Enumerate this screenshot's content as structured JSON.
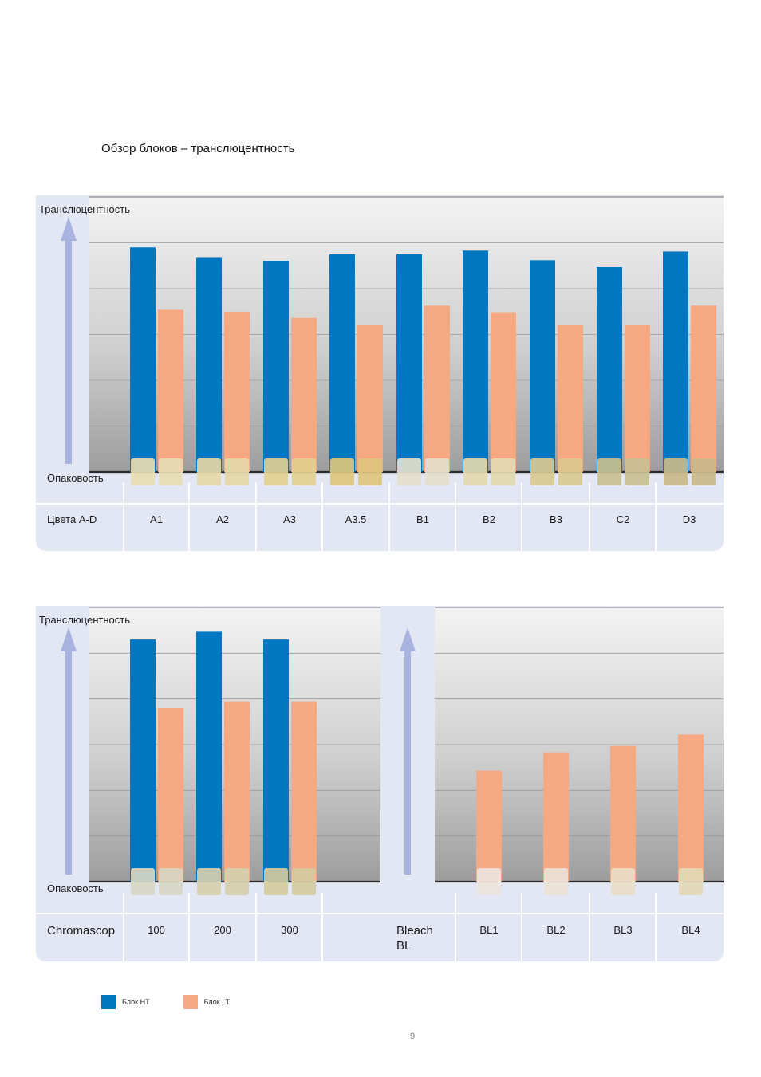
{
  "title": "Обзор блоков – транслюцентность",
  "page_number": "9",
  "legend": [
    {
      "label": "Блок HT",
      "color": "#0077c0"
    },
    {
      "label": "Блок LT",
      "color": "#f6a882"
    }
  ],
  "axis": {
    "top_label": "Транслюцентность",
    "bottom_label": "Опаковость"
  },
  "colors": {
    "ht": "#0077c0",
    "lt": "#f6a882",
    "panel": "#e3e7f3",
    "arrow": "#a8b4df"
  },
  "chart_data": [
    {
      "type": "bar",
      "row_label": "Цвета A-D",
      "categories": [
        "A1",
        "A2",
        "A3",
        "A3.5",
        "B1",
        "B2",
        "B3",
        "C2",
        "D3"
      ],
      "series": [
        {
          "name": "Блок HT",
          "values": [
            4.9,
            4.67,
            4.6,
            4.75,
            4.75,
            4.83,
            4.62,
            4.47,
            4.81
          ]
        },
        {
          "name": "Блок LT",
          "values": [
            3.54,
            3.48,
            3.36,
            3.2,
            3.63,
            3.47,
            3.2,
            3.2,
            3.63
          ]
        }
      ],
      "swatches": [
        "#e6dcb4",
        "#e5d7a6",
        "#e2cf90",
        "#ddc57c",
        "#e3dfca",
        "#e2d9b0",
        "#dac98e",
        "#c8c092",
        "#c9b98a"
      ],
      "ylim": [
        0,
        6
      ],
      "xlabel": "",
      "ylabel": ""
    },
    {
      "type": "bar",
      "row_label": "Chromascop",
      "categories": [
        "100",
        "200",
        "300"
      ],
      "series": [
        {
          "name": "Блок HT",
          "values": [
            5.3,
            5.47,
            5.3
          ]
        },
        {
          "name": "Блок LT",
          "values": [
            3.8,
            3.95,
            3.95
          ]
        }
      ],
      "swatches": [
        "#d6d7c3",
        "#d4cfac",
        "#d2cb9e"
      ],
      "ylim": [
        0,
        6
      ],
      "xlabel": "",
      "ylabel": ""
    },
    {
      "type": "bar",
      "row_label": "Bleach BL",
      "categories": [
        "BL1",
        "BL2",
        "BL3",
        "BL4"
      ],
      "series": [
        {
          "name": "Блок LT",
          "values": [
            2.43,
            2.83,
            2.97,
            3.22
          ]
        }
      ],
      "swatches": [
        "#ebe4dc",
        "#ebe2d6",
        "#e8ddc6",
        "#e2d8b6"
      ],
      "ylim": [
        0,
        6
      ],
      "xlabel": "",
      "ylabel": ""
    }
  ]
}
